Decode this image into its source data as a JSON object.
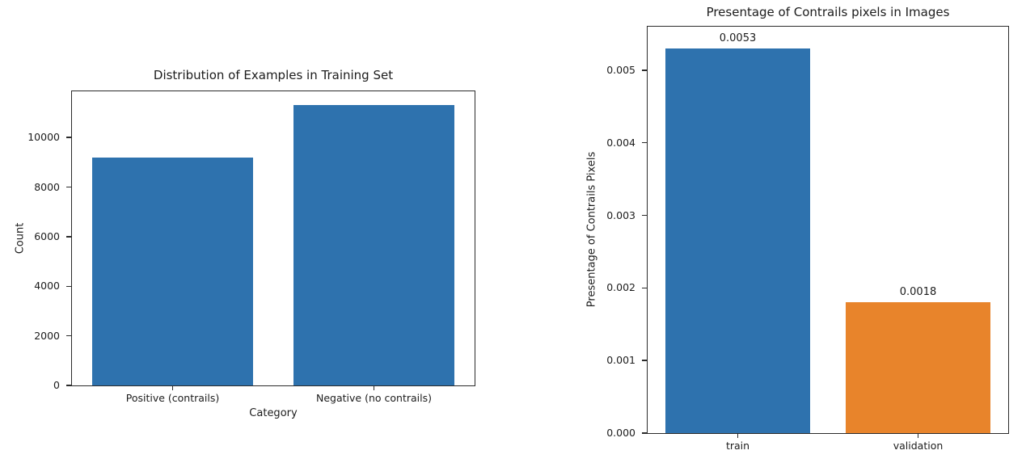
{
  "page": {
    "background_color": "#ffffff",
    "text_color": "#1c1c1c",
    "axis_color": "#2b2b2b"
  },
  "chart_data": [
    {
      "type": "bar",
      "title": "Distribution of Examples in Training Set",
      "xlabel": "Category",
      "ylabel": "Count",
      "categories": [
        "Positive (contrails)",
        "Negative (no contrails)"
      ],
      "values": [
        9200,
        11300
      ],
      "bar_colors": [
        "#2e72ae",
        "#2e72ae"
      ],
      "bar_value_labels": [],
      "ylim": [
        0,
        11865
      ],
      "yticks": [
        0,
        2000,
        4000,
        6000,
        8000,
        10000
      ],
      "ytick_labels": [
        "0",
        "2000",
        "4000",
        "6000",
        "8000",
        "10000"
      ],
      "grid": false,
      "legend": null,
      "bar_width_fraction": 0.8
    },
    {
      "type": "bar",
      "title": "Presentage of Contrails pixels in Images",
      "xlabel": "",
      "ylabel": "Presentage of Contrails Pixels",
      "categories": [
        "train",
        "validation"
      ],
      "values": [
        0.0053,
        0.0018
      ],
      "bar_colors": [
        "#2e72ae",
        "#e8842b"
      ],
      "bar_value_labels": [
        "0.0053",
        "0.0018"
      ],
      "ylim": [
        0,
        0.0056
      ],
      "yticks": [
        0,
        0.001,
        0.002,
        0.003,
        0.004,
        0.005
      ],
      "ytick_labels": [
        "0.000",
        "0.001",
        "0.002",
        "0.003",
        "0.004",
        "0.005"
      ],
      "grid": false,
      "legend": null,
      "bar_width_fraction": 0.8
    }
  ]
}
